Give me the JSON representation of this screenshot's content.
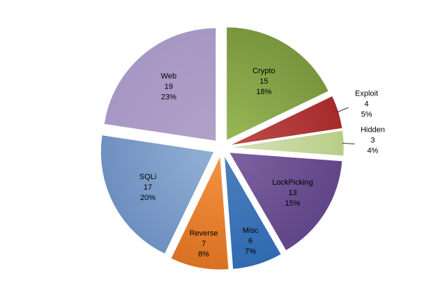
{
  "chart_data": {
    "type": "pie",
    "exploded": true,
    "label_format": "category / value / percent",
    "slices": [
      {
        "label": "Crypto",
        "value": 15,
        "percent": "18%",
        "color": "#77933c",
        "color_light": "#9bbb59"
      },
      {
        "label": "Exploit",
        "value": 4,
        "percent": "5%",
        "color": "#a5292a",
        "color_light": "#c0504d"
      },
      {
        "label": "Hidden",
        "value": 3,
        "percent": "4%",
        "color": "#b6cd84",
        "color_light": "#d7e4bd"
      },
      {
        "label": "LockPicking",
        "value": 13,
        "percent": "15%",
        "color": "#5f4486",
        "color_light": "#8064a2"
      },
      {
        "label": "Misc",
        "value": 6,
        "percent": "7%",
        "color": "#2e69b0",
        "color_light": "#4f81bd"
      },
      {
        "label": "Reverse",
        "value": 7,
        "percent": "8%",
        "color": "#d76f1f",
        "color_light": "#f79646"
      },
      {
        "label": "SQLi",
        "value": 17,
        "percent": "20%",
        "color": "#6c8ebf",
        "color_light": "#95b3d7"
      },
      {
        "label": "Web",
        "value": 19,
        "percent": "23%",
        "color": "#a696c4",
        "color_light": "#b3a2c7"
      }
    ]
  }
}
